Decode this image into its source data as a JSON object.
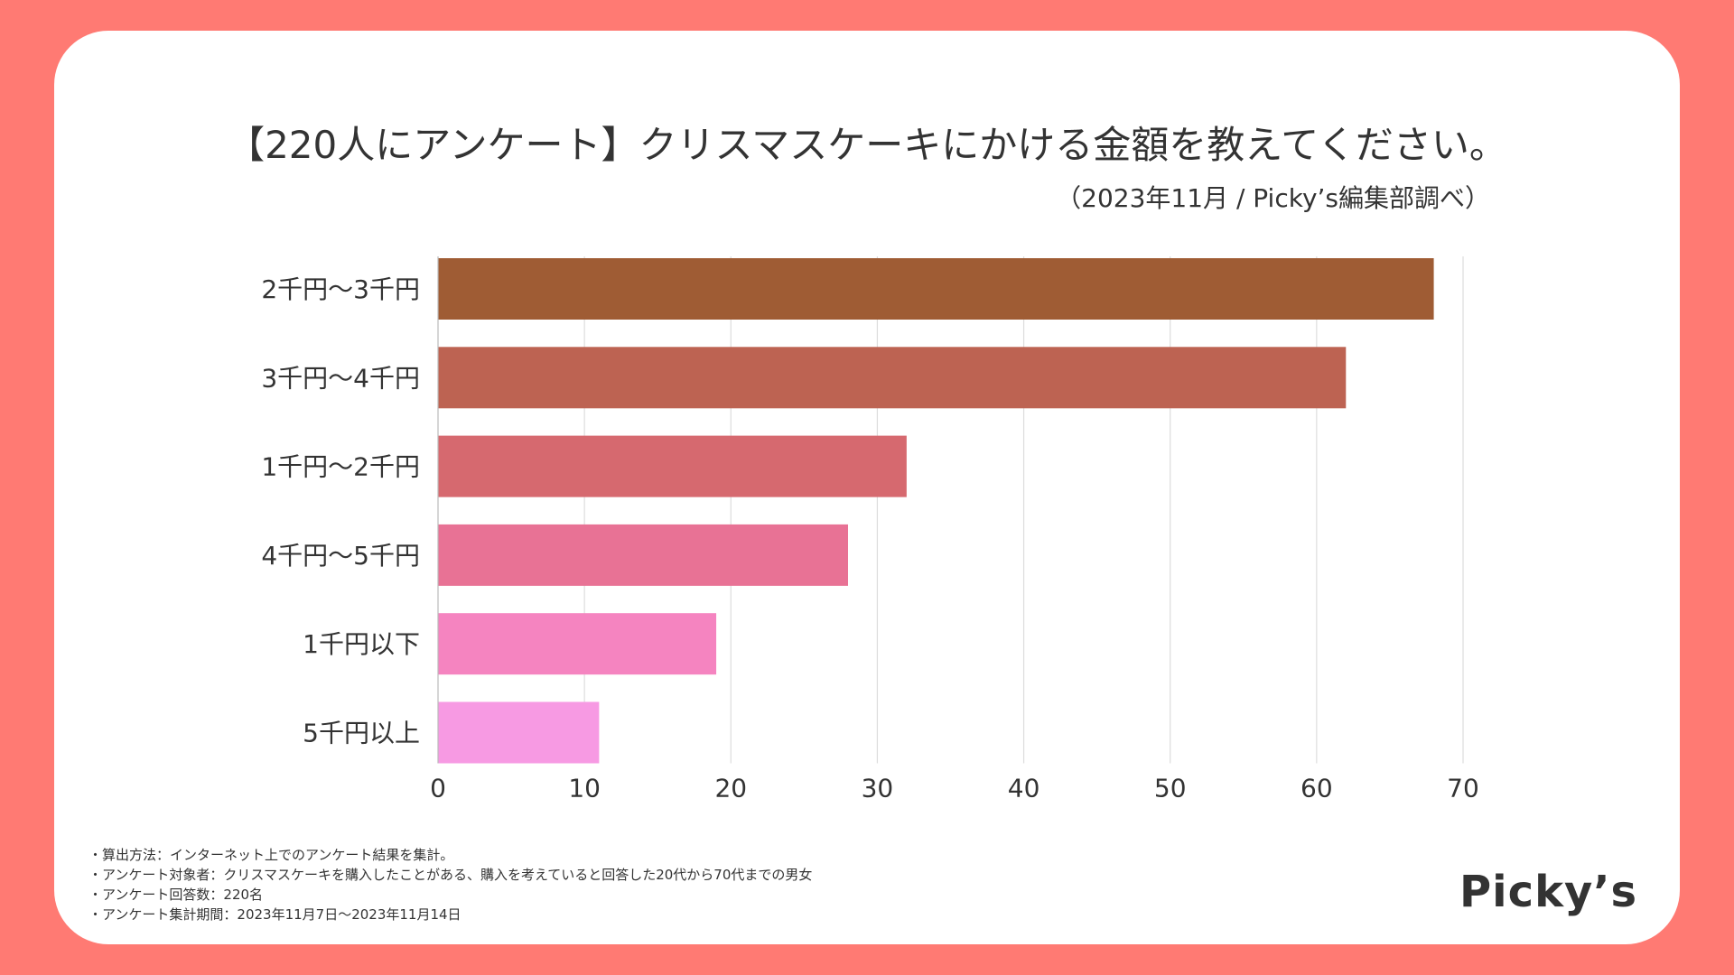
{
  "colors": {
    "background": "#ff7a73",
    "card": "#ffffff",
    "text": "#333333",
    "grid": "#dddddd"
  },
  "notes": [
    "・算出方法：インターネット上でのアンケート結果を集計。",
    "・アンケート対象者：クリスマスケーキを購入したことがある、購入を考えていると回答した20代から70代までの男女",
    "・アンケート回答数：220名",
    "・アンケート集計期間：2023年11月7日〜2023年11月14日"
  ],
  "logo": "Picky’s",
  "chart_data": {
    "type": "bar",
    "orientation": "horizontal",
    "title": "【220人にアンケート】クリスマスケーキにかける金額を教えてください。",
    "subtitle": "（2023年11月 / Picky’s編集部調べ）",
    "categories": [
      "2千円〜3千円",
      "3千円〜4千円",
      "1千円〜2千円",
      "4千円〜5千円",
      "1千円以下",
      "5千円以上"
    ],
    "values": [
      68,
      62,
      32,
      28,
      19,
      11
    ],
    "bar_colors": [
      "#9f5c34",
      "#bd6352",
      "#d6696f",
      "#e87295",
      "#f584c0",
      "#f79ae3"
    ],
    "xlim": [
      0,
      70
    ],
    "xticks": [
      0,
      10,
      20,
      30,
      40,
      50,
      60,
      70
    ],
    "grid": true,
    "xlabel": "",
    "ylabel": ""
  }
}
